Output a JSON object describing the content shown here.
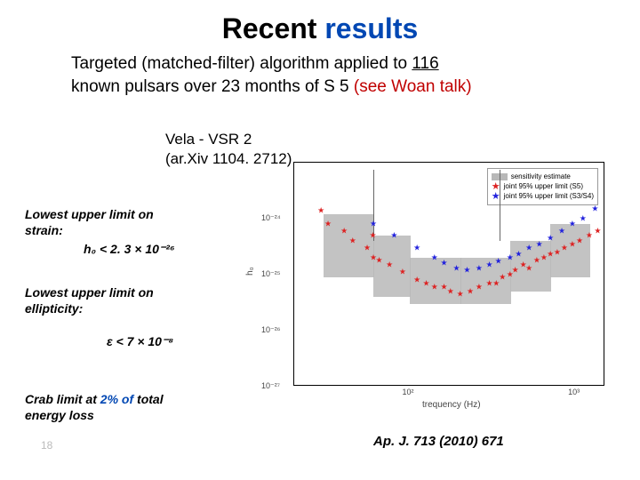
{
  "title": {
    "text1": "Recent ",
    "text2": "results"
  },
  "subtitle": {
    "line1_a": "Targeted (matched-filter) algorithm applied to ",
    "n_pulsars": "116",
    "line2_a": "known pulsars over 23 months of S 5 ",
    "see": "(see Woan talk)"
  },
  "vela": {
    "l1": "Vela - VSR 2",
    "l2": "(ar.Xiv 1104. 2712)"
  },
  "note1": {
    "l1": "Lowest upper limit on",
    "l2": "strain:"
  },
  "note1b": "h₀ < 2. 3 × 10⁻²⁶",
  "note2": {
    "l1": "Lowest upper limit on",
    "l2": "ellipticity:"
  },
  "note2b": "ε < 7 × 10⁻⁸",
  "note3": {
    "l1": "Crab limit at ",
    "pct": "2% of",
    "l2": " total",
    "l3": "energy loss"
  },
  "cite": "Ap. J. 713 (2010) 671",
  "pgnum": "18",
  "chart": {
    "type": "scatter-with-band",
    "xlabel": "trequency (Hz)",
    "ylabel": "h₀",
    "xscale": "log",
    "yscale": "log",
    "xlim": [
      20,
      1500
    ],
    "ylim": [
      1e-27,
      1e-23
    ],
    "xticks": [
      100,
      1000
    ],
    "xtick_labels": [
      "10²",
      "10³"
    ],
    "yticks": [
      1e-27,
      1e-26,
      1e-25,
      1e-24
    ],
    "ytick_labels": [
      "10⁻²⁷",
      "10⁻²⁶",
      "10⁻²⁵",
      "10⁻²⁴"
    ],
    "legend": {
      "items": [
        {
          "kind": "band",
          "color": "#b8b8b8",
          "label": "sensitivity estimate"
        },
        {
          "kind": "star",
          "color": "#d22222",
          "label": "joint 95% upper limit (S5)"
        },
        {
          "kind": "star",
          "color": "#2222d2",
          "label": "joint 95% upper limit (S3/S4)"
        }
      ]
    },
    "band_color": "#b8b8b8",
    "band": [
      {
        "f": 30,
        "lo": 3e-25,
        "hi": 1.2e-24
      },
      {
        "f": 60,
        "lo": 9e-26,
        "hi": 5e-25
      },
      {
        "f": 100,
        "lo": 4e-26,
        "hi": 2e-25
      },
      {
        "f": 200,
        "lo": 3e-26,
        "hi": 1.2e-25
      },
      {
        "f": 400,
        "lo": 5e-26,
        "hi": 2e-25
      },
      {
        "f": 700,
        "lo": 9e-26,
        "hi": 4e-25
      },
      {
        "f": 1200,
        "lo": 2e-25,
        "hi": 8e-25
      }
    ],
    "red_points": [
      {
        "f": 29,
        "h": 1.4e-24
      },
      {
        "f": 32,
        "h": 8e-25
      },
      {
        "f": 40,
        "h": 6e-25
      },
      {
        "f": 45,
        "h": 4e-25
      },
      {
        "f": 55,
        "h": 3e-25
      },
      {
        "f": 60,
        "h": 2e-25
      },
      {
        "f": 59.6,
        "h": 5e-25
      },
      {
        "f": 65,
        "h": 1.8e-25
      },
      {
        "f": 75,
        "h": 1.5e-25
      },
      {
        "f": 90,
        "h": 1.1e-25
      },
      {
        "f": 110,
        "h": 8e-26
      },
      {
        "f": 125,
        "h": 7e-26
      },
      {
        "f": 140,
        "h": 6e-26
      },
      {
        "f": 160,
        "h": 6e-26
      },
      {
        "f": 175,
        "h": 5e-26
      },
      {
        "f": 200,
        "h": 4.5e-26
      },
      {
        "f": 230,
        "h": 5e-26
      },
      {
        "f": 260,
        "h": 6e-26
      },
      {
        "f": 300,
        "h": 7e-26
      },
      {
        "f": 330,
        "h": 7e-26
      },
      {
        "f": 360,
        "h": 9e-26
      },
      {
        "f": 400,
        "h": 1e-25
      },
      {
        "f": 430,
        "h": 1.2e-25
      },
      {
        "f": 480,
        "h": 1.5e-25
      },
      {
        "f": 520,
        "h": 1.3e-25
      },
      {
        "f": 580,
        "h": 1.8e-25
      },
      {
        "f": 640,
        "h": 2e-25
      },
      {
        "f": 700,
        "h": 2.3e-25
      },
      {
        "f": 770,
        "h": 2.5e-25
      },
      {
        "f": 850,
        "h": 3e-25
      },
      {
        "f": 950,
        "h": 3.5e-25
      },
      {
        "f": 1050,
        "h": 4e-25
      },
      {
        "f": 1200,
        "h": 5e-25
      },
      {
        "f": 1350,
        "h": 6e-25
      }
    ],
    "blue_points": [
      {
        "f": 60,
        "h": 8e-25
      },
      {
        "f": 80,
        "h": 5e-25
      },
      {
        "f": 110,
        "h": 3e-25
      },
      {
        "f": 140,
        "h": 2e-25
      },
      {
        "f": 160,
        "h": 1.6e-25
      },
      {
        "f": 190,
        "h": 1.3e-25
      },
      {
        "f": 220,
        "h": 1.2e-25
      },
      {
        "f": 260,
        "h": 1.3e-25
      },
      {
        "f": 300,
        "h": 1.5e-25
      },
      {
        "f": 340,
        "h": 1.7e-25
      },
      {
        "f": 400,
        "h": 2e-25
      },
      {
        "f": 450,
        "h": 2.3e-25
      },
      {
        "f": 520,
        "h": 3e-25
      },
      {
        "f": 600,
        "h": 3.5e-25
      },
      {
        "f": 700,
        "h": 4.5e-25
      },
      {
        "f": 820,
        "h": 6e-25
      },
      {
        "f": 950,
        "h": 8e-25
      },
      {
        "f": 1100,
        "h": 1e-24
      },
      {
        "f": 1300,
        "h": 1.5e-24
      }
    ],
    "spikes": [
      60,
      344
    ],
    "marker_red": "★",
    "marker_blue": "★"
  }
}
